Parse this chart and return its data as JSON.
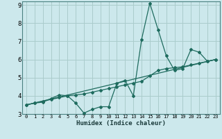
{
  "xlabel": "Humidex (Indice chaleur)",
  "xlim": [
    -0.5,
    23.5
  ],
  "ylim": [
    3,
    9.2
  ],
  "yticks": [
    3,
    4,
    5,
    6,
    7,
    8,
    9
  ],
  "xticks": [
    0,
    1,
    2,
    3,
    4,
    5,
    6,
    7,
    8,
    9,
    10,
    11,
    12,
    13,
    14,
    15,
    16,
    17,
    18,
    19,
    20,
    21,
    22,
    23
  ],
  "bg_color": "#cce8ec",
  "grid_color": "#aacccc",
  "line_color": "#1e6b5e",
  "line1_x": [
    0,
    1,
    2,
    3,
    4,
    5,
    6,
    7,
    8,
    9,
    10,
    11,
    12,
    13,
    14,
    15,
    16,
    17,
    18,
    19,
    20,
    21,
    22,
    23
  ],
  "line1_y": [
    3.5,
    3.6,
    3.65,
    3.85,
    4.05,
    4.0,
    3.6,
    3.05,
    3.25,
    3.4,
    3.4,
    4.7,
    4.85,
    4.0,
    7.1,
    9.1,
    7.65,
    6.2,
    5.4,
    5.5,
    6.55,
    6.4,
    5.9,
    6.0
  ],
  "line2_x": [
    0,
    1,
    2,
    3,
    4,
    5,
    6,
    7,
    8,
    9,
    10,
    11,
    12,
    13,
    14,
    15,
    16,
    17,
    18,
    19,
    20,
    21,
    22,
    23
  ],
  "line2_y": [
    3.5,
    3.6,
    3.7,
    3.8,
    3.9,
    4.0,
    4.05,
    4.1,
    4.2,
    4.3,
    4.4,
    4.5,
    4.6,
    4.7,
    4.8,
    5.1,
    5.4,
    5.5,
    5.55,
    5.6,
    5.7,
    5.8,
    5.9,
    6.0
  ],
  "line3_x": [
    0,
    23
  ],
  "line3_y": [
    3.5,
    6.0
  ],
  "marker_style": "D",
  "marker_size": 2.0,
  "line_width": 0.9
}
